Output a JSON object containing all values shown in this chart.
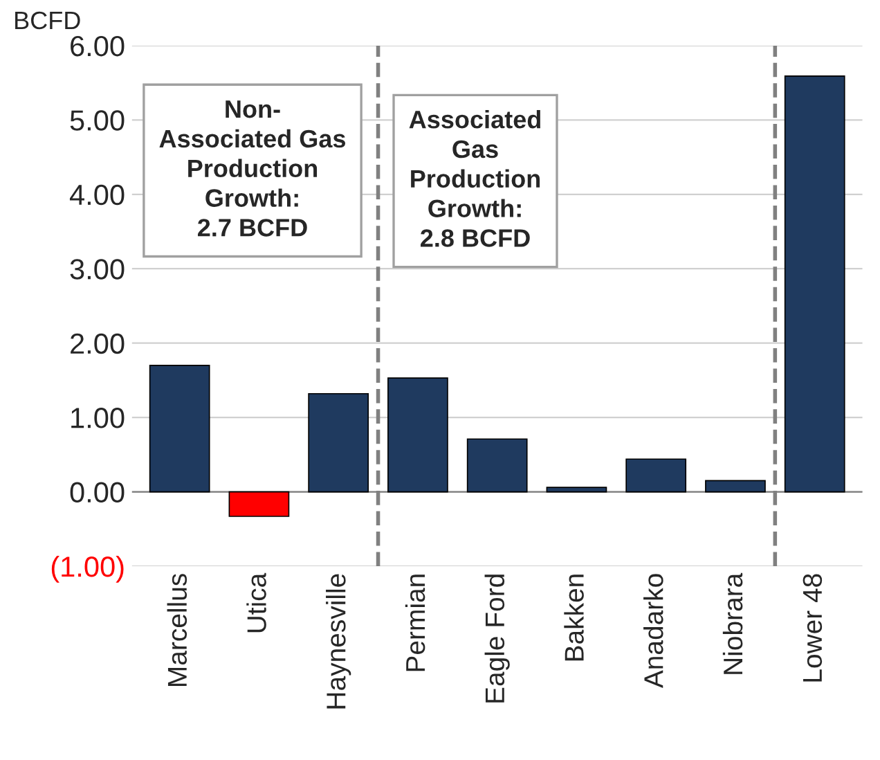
{
  "chart_data": {
    "type": "bar",
    "ylabel": "BCFD",
    "categories": [
      "Marcellus",
      "Utica",
      "Haynesville",
      "Permian",
      "Eagle Ford",
      "Bakken",
      "Anadarko",
      "Niobrara",
      "Lower 48"
    ],
    "values": [
      1.7,
      -0.33,
      1.32,
      1.53,
      0.71,
      0.06,
      0.44,
      0.15,
      5.59
    ],
    "colors": [
      "#1f3a5f",
      "#ff0000",
      "#1f3a5f",
      "#1f3a5f",
      "#1f3a5f",
      "#1f3a5f",
      "#1f3a5f",
      "#1f3a5f",
      "#1f3a5f"
    ],
    "ylim": [
      -1,
      6
    ],
    "yticks": [
      {
        "value": -1,
        "label": "(1.00)"
      },
      {
        "value": 0,
        "label": "0.00"
      },
      {
        "value": 1,
        "label": "1.00"
      },
      {
        "value": 2,
        "label": "2.00"
      },
      {
        "value": 3,
        "label": "3.00"
      },
      {
        "value": 4,
        "label": "4.00"
      },
      {
        "value": 5,
        "label": "5.00"
      },
      {
        "value": 6,
        "label": "6.00"
      }
    ],
    "grid": "y",
    "annotations": [
      "Non-\nAssociated Gas\nProduction\nGrowth:\n2.7 BCFD",
      "Associated\nGas\nProduction\nGrowth:\n2.8 BCFD"
    ]
  }
}
